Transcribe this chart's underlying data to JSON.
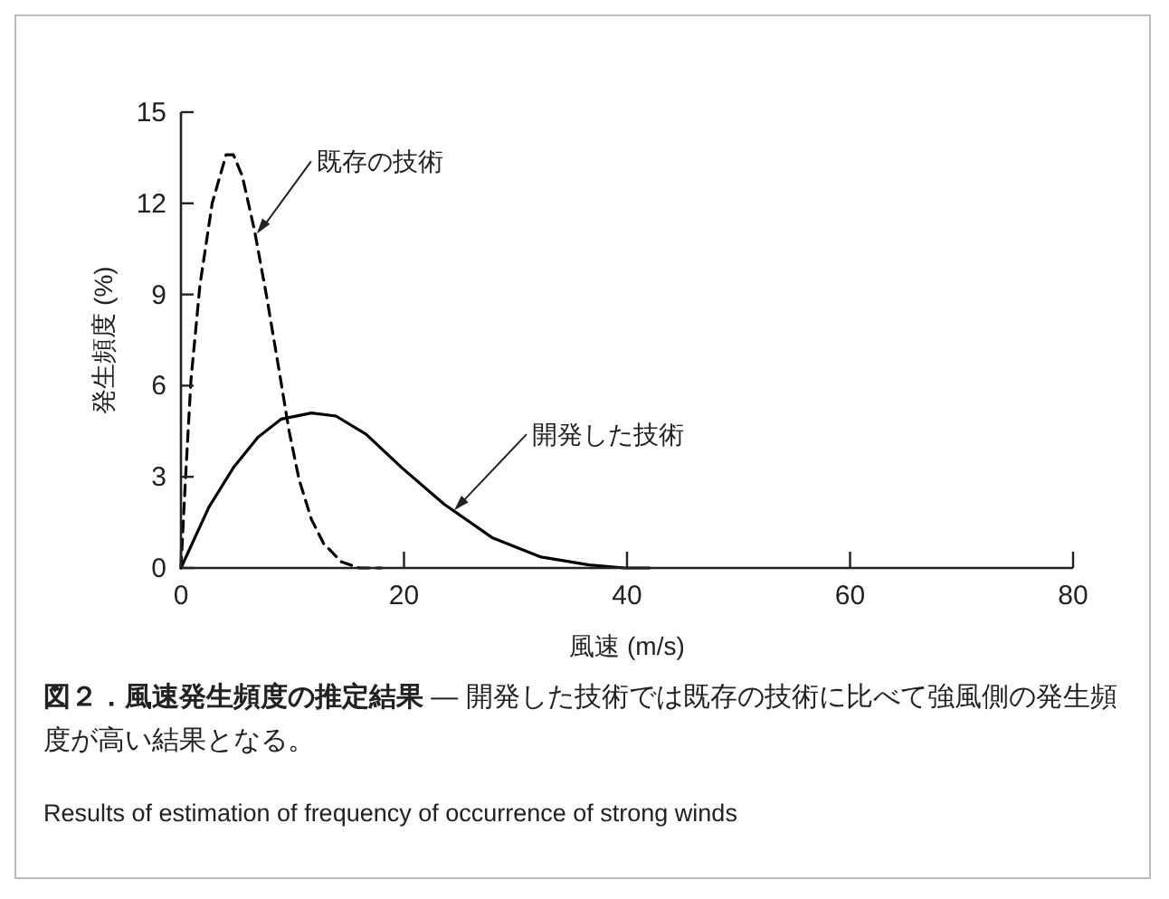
{
  "chart_data": {
    "type": "line",
    "title": "図２．風速発生頻度の推定結果",
    "subtitle": "— 開発した技術では既存の技術に比べて強風側の発生頻度が高い結果となる。",
    "xlabel": "風速 (m/s)",
    "ylabel": "発生頻度 (%)",
    "xlim": [
      0,
      80
    ],
    "xticks": [
      0,
      20,
      40,
      60,
      80
    ],
    "ylim": [
      0,
      15
    ],
    "yticks": [
      0,
      3,
      6,
      9,
      12,
      15
    ],
    "grid": false,
    "marker": "none",
    "series": [
      {
        "color": "#000000",
        "line_style": "dashed",
        "x": [
          0,
          0.4,
          0.9,
          1.7,
          2.8,
          4.05,
          4.7,
          5.5,
          6.6,
          7.7,
          8.8,
          9.7,
          10.6,
          11.7,
          12.8,
          14.4,
          16,
          18
        ],
        "values": [
          0,
          2.9,
          6.2,
          9.3,
          12,
          13.6,
          13.6,
          12.9,
          11.1,
          8.9,
          6.5,
          4.5,
          2.9,
          1.6,
          0.8,
          0.2,
          0,
          0
        ]
      },
      {
        "color": "#000000",
        "line_style": "solid",
        "x": [
          0,
          2.5,
          4.7,
          6.9,
          9,
          11.7,
          13.9,
          16.6,
          19.8,
          23.6,
          27.9,
          32.3,
          36.6,
          39.8,
          42
        ],
        "values": [
          0,
          2,
          3.3,
          4.3,
          4.9,
          5.1,
          5,
          4.4,
          3.3,
          2.1,
          1,
          0.36,
          0.1,
          0,
          0
        ]
      }
    ],
    "annotations": [
      {
        "text": "既存の技術",
        "x": 6.8,
        "y": 11
      },
      {
        "text": "開発した技術",
        "x": 24.5,
        "y": 1.9
      },
      "Results of estimation of frequency of occurrence of strong winds"
    ]
  }
}
